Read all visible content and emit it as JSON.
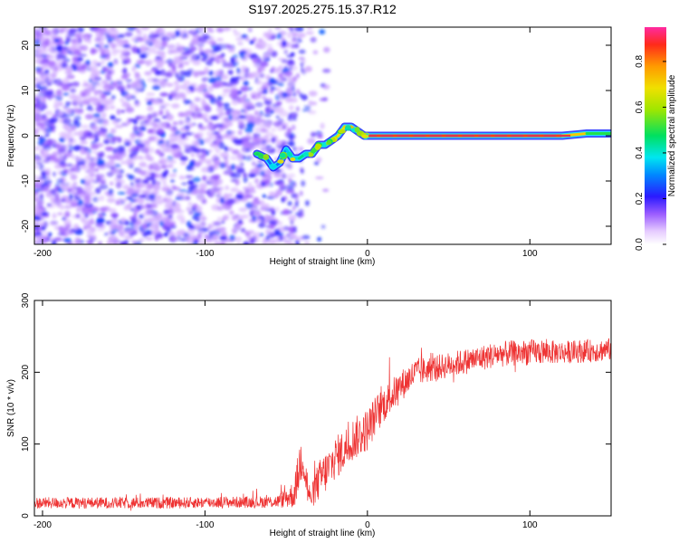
{
  "title": "S197.2025.275.15.37.R12",
  "colors": {
    "trace": "#ee3333",
    "axis": "#000000",
    "scatter_hue_low": "#7b2cff",
    "ridge_outer": "#1a2cff",
    "ridge_mid": "#22e0ff",
    "ridge_inner": "#f2c21a",
    "ridge_core": "#e2354a"
  },
  "chart_data": [
    {
      "type": "heatmap",
      "name": "spectrogram",
      "title": "",
      "xlabel": "Height of straight line (km)",
      "ylabel": "Frequency (Hz)",
      "xlim": [
        -205,
        150
      ],
      "ylim": [
        -24,
        24
      ],
      "x_ticks": [
        -200,
        -100,
        0,
        100
      ],
      "x_tick_labels": [
        "-200",
        "-100",
        "0",
        "100"
      ],
      "y_ticks": [
        -20,
        -10,
        0,
        10,
        20
      ],
      "y_tick_labels": [
        "-20",
        "-10",
        "0",
        "10",
        "20"
      ],
      "colorbar": {
        "label": "Normalized spectral amplitude",
        "range": [
          0.0,
          0.95
        ],
        "ticks": [
          0.0,
          0.2,
          0.4,
          0.6,
          0.8
        ],
        "tick_labels": [
          "0.0",
          "0.2",
          "0.4",
          "0.6",
          "0.8"
        ],
        "colormap": "rainbow"
      },
      "ridge": {
        "x": [
          -68,
          -62,
          -58,
          -54,
          -50,
          -46,
          -42,
          -38,
          -34,
          -30,
          -26,
          -22,
          -18,
          -14,
          -10,
          -6,
          -2,
          0,
          10,
          30,
          60,
          90,
          120,
          135,
          150
        ],
        "frequency": [
          -4,
          -5,
          -7,
          -6,
          -3,
          -5,
          -5,
          -4,
          -4,
          -2,
          -2,
          -1,
          0,
          2,
          2,
          1,
          0,
          0,
          0,
          0,
          0,
          0,
          0,
          0.5,
          0.5
        ],
        "amplitude": [
          0.25,
          0.3,
          0.3,
          0.3,
          0.35,
          0.4,
          0.45,
          0.5,
          0.45,
          0.5,
          0.6,
          0.65,
          0.7,
          0.75,
          0.75,
          0.8,
          0.9,
          0.9,
          0.9,
          0.9,
          0.9,
          0.9,
          0.9,
          0.6,
          0.45
        ]
      },
      "noise_region": {
        "x_range": [
          -205,
          -45
        ],
        "amplitude_range": [
          0.05,
          0.25
        ]
      }
    },
    {
      "type": "line",
      "name": "snr",
      "title": "",
      "xlabel": "Height of straight line (km)",
      "ylabel": "SNR (10 * v/v)",
      "xlim": [
        -205,
        150
      ],
      "ylim": [
        0,
        300
      ],
      "x_ticks": [
        -200,
        -100,
        0,
        100
      ],
      "x_tick_labels": [
        "-200",
        "-100",
        "0",
        "100"
      ],
      "y_ticks": [
        0,
        100,
        200,
        300
      ],
      "y_tick_labels": [
        "0",
        "100",
        "200",
        "300"
      ],
      "series": [
        {
          "name": "SNR",
          "x": [
            -205,
            -180,
            -150,
            -120,
            -90,
            -70,
            -55,
            -45,
            -40,
            -37,
            -35,
            -32,
            -28,
            -24,
            -20,
            -15,
            -10,
            -5,
            0,
            5,
            10,
            20,
            30,
            40,
            60,
            80,
            100,
            120,
            140,
            150
          ],
          "mean": [
            18,
            18,
            18,
            18,
            19,
            19,
            20,
            30,
            90,
            40,
            22,
            40,
            55,
            65,
            80,
            90,
            105,
            112,
            120,
            140,
            155,
            180,
            200,
            205,
            215,
            225,
            228,
            228,
            230,
            232
          ],
          "spread": [
            8,
            8,
            8,
            8,
            8,
            8,
            9,
            20,
            40,
            30,
            12,
            25,
            30,
            30,
            30,
            30,
            30,
            30,
            30,
            28,
            25,
            22,
            20,
            18,
            18,
            18,
            18,
            16,
            16,
            16
          ]
        }
      ]
    }
  ]
}
